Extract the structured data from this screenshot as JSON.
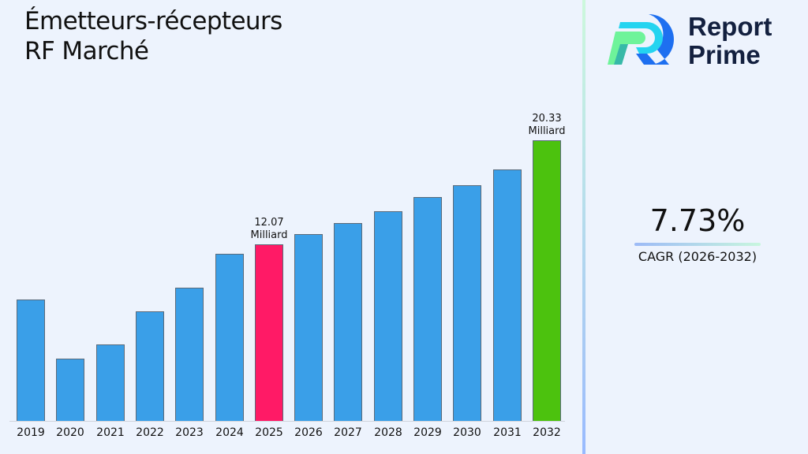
{
  "title": {
    "line1": "Émetteurs-récepteurs",
    "line2": "RF Marché"
  },
  "logo": {
    "line1": "Report",
    "line2": "Prime",
    "colors": {
      "blue": "#1e6ff0",
      "cyan": "#24d4f0",
      "green": "#6ef39a",
      "teal": "#37b9a8",
      "text": "#13203f"
    }
  },
  "cagr": {
    "value": "7.73%",
    "label": "CAGR (2026-2032)"
  },
  "colors": {
    "bar_default": "#3a9fe8",
    "bar_highlight_current": "#ff1a66",
    "bar_highlight_final": "#4cc20e",
    "background": "#edf3fd"
  },
  "chart_data": {
    "type": "bar",
    "title": "Émetteurs-récepteurs RF Marché",
    "xlabel": "",
    "ylabel": "",
    "unit": "Milliard",
    "categories": [
      "2019",
      "2020",
      "2021",
      "2022",
      "2023",
      "2024",
      "2025",
      "2026",
      "2027",
      "2028",
      "2029",
      "2030",
      "2031",
      "2032"
    ],
    "values": [
      7.69,
      2.99,
      4.12,
      6.75,
      8.63,
      11.32,
      12.07,
      12.88,
      13.76,
      14.7,
      15.83,
      16.77,
      18.02,
      20.33
    ],
    "annotations": [
      {
        "category": "2025",
        "value_label": "12.07",
        "unit_label": "Milliard"
      },
      {
        "category": "2032",
        "value_label": "20.33",
        "unit_label": "Milliard"
      }
    ],
    "highlight": {
      "2025": "#ff1a66",
      "2032": "#4cc20e"
    },
    "grid": false,
    "legend": "none",
    "cagr": "7.73%",
    "cagr_period": "2026-2032"
  }
}
